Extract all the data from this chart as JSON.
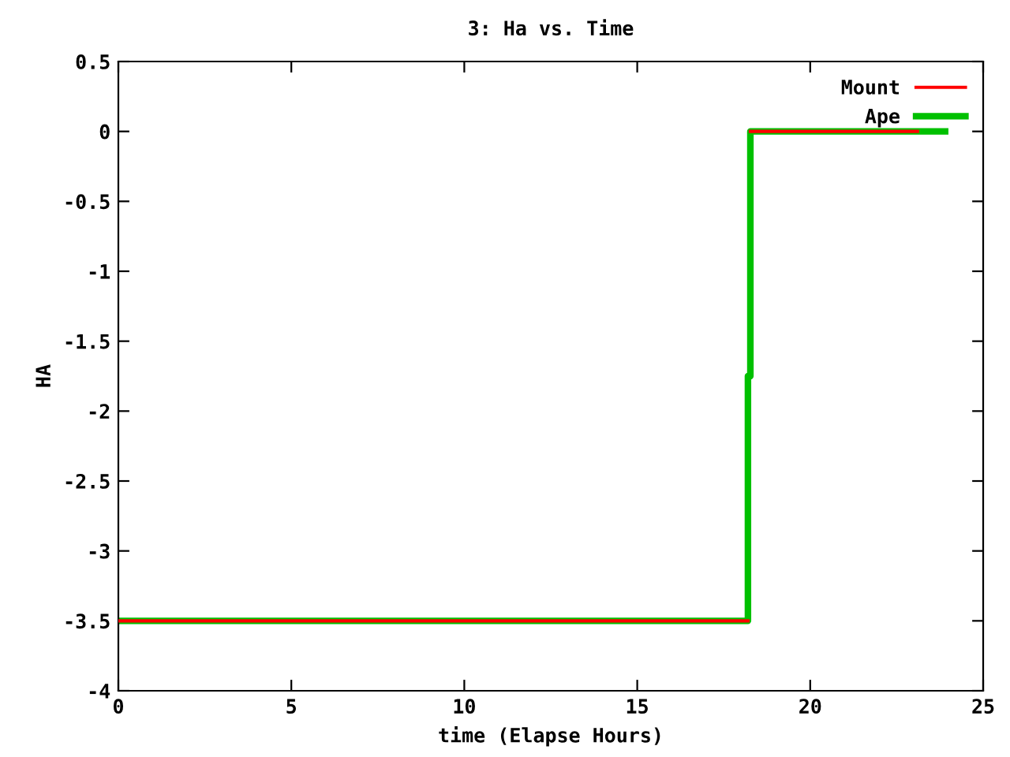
{
  "chart_data": {
    "type": "line",
    "title": "3: Ha vs. Time",
    "xlabel": "time (Elapse Hours)",
    "ylabel": "HA",
    "xlim": [
      0,
      25
    ],
    "xticks": [
      0,
      5,
      10,
      15,
      20,
      25
    ],
    "ylim": [
      -4,
      0.5
    ],
    "yticks": [
      -4,
      -3.5,
      -3,
      -2.5,
      -2,
      -1.5,
      -1,
      -0.5,
      0,
      0.5
    ],
    "grid": false,
    "legend": "top right",
    "marker": "none",
    "line_style": "solid",
    "series": [
      {
        "name": "Mount",
        "color": "#ff0000",
        "x": [
          0,
          18.2,
          18.25,
          18.27,
          23.1
        ],
        "values": [
          -3.5,
          -3.5,
          null,
          0,
          0
        ]
      },
      {
        "name": "Ape",
        "color": "#00c000",
        "x": [
          0,
          18.2,
          18.2,
          18.27,
          18.27,
          23.9
        ],
        "values": [
          -3.5,
          -3.5,
          -1.75,
          -1.75,
          0,
          0
        ]
      }
    ]
  }
}
